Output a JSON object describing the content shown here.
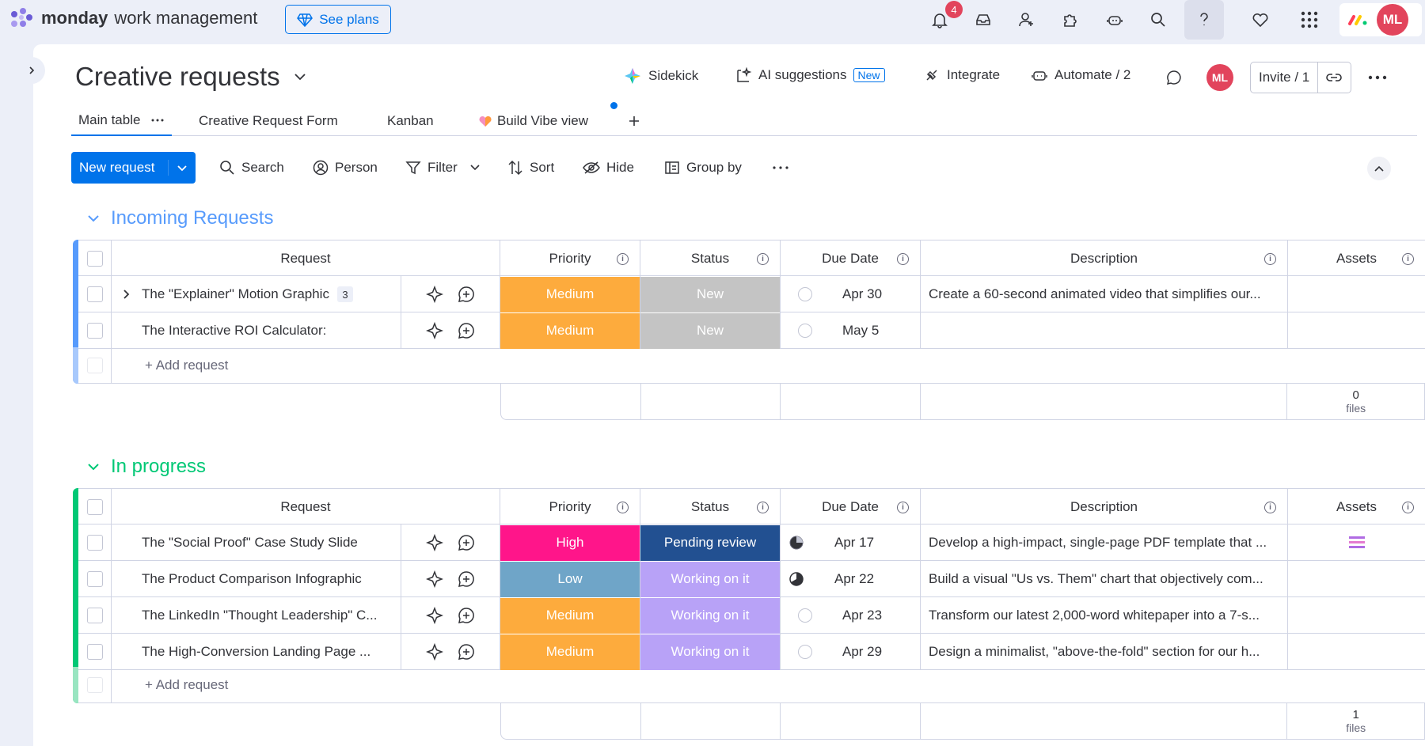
{
  "app": {
    "brand_bold": "monday",
    "brand_rest": "work management",
    "see_plans": "See plans",
    "notif_count": "4",
    "user_initials": "ML"
  },
  "board": {
    "title": "Creative requests",
    "sidekick": "Sidekick",
    "ai_suggestions": "AI suggestions",
    "ai_new": "New",
    "integrate": "Integrate",
    "automate": "Automate / 2",
    "invite": "Invite / 1"
  },
  "tabs": [
    {
      "label": "Main table"
    },
    {
      "label": "Creative Request Form"
    },
    {
      "label": "Kanban"
    },
    {
      "label": "Build Vibe view"
    }
  ],
  "toolbar": {
    "new_request": "New request",
    "search": "Search",
    "person": "Person",
    "filter": "Filter",
    "sort": "Sort",
    "hide": "Hide",
    "group_by": "Group by"
  },
  "columns": {
    "request": "Request",
    "priority": "Priority",
    "status": "Status",
    "due_date": "Due Date",
    "description": "Description",
    "assets": "Assets"
  },
  "groups": [
    {
      "title": "Incoming Requests",
      "color": "#579bfc",
      "add_label": "+ Add request",
      "files_count": "0",
      "files_label": "files",
      "rows": [
        {
          "name": "The \"Explainer\" Motion Graphic",
          "subitems": "3",
          "priority": "Medium",
          "priority_color": "#fdab3d",
          "status": "New",
          "status_color": "#c4c4c4",
          "date": "Apr 30",
          "description": "Create a 60-second animated video that simplifies our..."
        },
        {
          "name": "The Interactive ROI Calculator:",
          "subitems": "",
          "priority": "Medium",
          "priority_color": "#fdab3d",
          "status": "New",
          "status_color": "#c4c4c4",
          "date": "May 5",
          "description": ""
        }
      ]
    },
    {
      "title": "In progress",
      "color": "#00c875",
      "add_label": "+ Add request",
      "files_count": "1",
      "files_label": "files",
      "rows": [
        {
          "name": "The \"Social Proof\" Case Study Slide",
          "priority": "High",
          "priority_color": "#ff158a",
          "status": "Pending review",
          "status_color": "#225091",
          "date": "Apr 17",
          "description": "Develop a high-impact, single-page PDF template that ..."
        },
        {
          "name": "The Product Comparison Infographic",
          "priority": "Low",
          "priority_color": "#6fa5c8",
          "status": "Working on it",
          "status_color": "#b8a2f7",
          "date": "Apr 22",
          "description": "Build a visual \"Us vs. Them\" chart that objectively com..."
        },
        {
          "name": "The LinkedIn \"Thought Leadership\" C...",
          "priority": "Medium",
          "priority_color": "#fdab3d",
          "status": "Working on it",
          "status_color": "#b8a2f7",
          "date": "Apr 23",
          "description": "Transform our latest 2,000-word whitepaper into a 7-s..."
        },
        {
          "name": "The High-Conversion Landing Page ...",
          "priority": "Medium",
          "priority_color": "#fdab3d",
          "status": "Working on it",
          "status_color": "#b8a2f7",
          "date": "Apr 29",
          "description": "Design a minimalist, \"above-the-fold\" section for our h..."
        }
      ]
    }
  ]
}
